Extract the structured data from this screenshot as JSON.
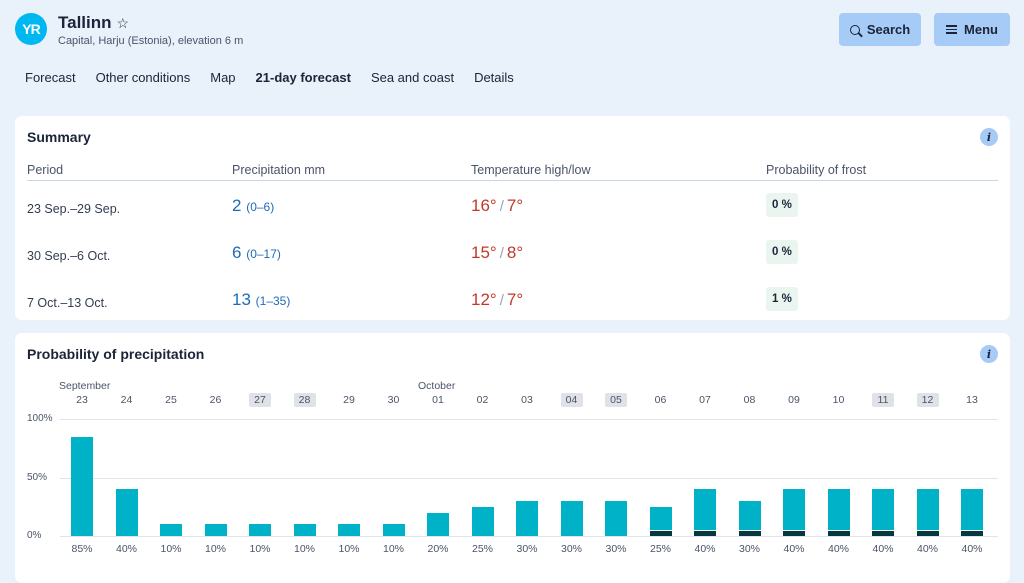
{
  "header": {
    "logo": "YR",
    "title": "Tallinn",
    "star_icon": "star-outline-icon",
    "subtitle": "Capital, Harju (Estonia), elevation 6 m",
    "search_label": "Search",
    "menu_label": "Menu"
  },
  "tabs": [
    "Forecast",
    "Other conditions",
    "Map",
    "21-day forecast",
    "Sea and coast",
    "Details"
  ],
  "active_tab": "21-day forecast",
  "summary": {
    "title": "Summary",
    "headers": {
      "period": "Period",
      "precip": "Precipitation mm",
      "temp": "Temperature high/low",
      "frost": "Probability of frost"
    },
    "rows": [
      {
        "period": "23 Sep.–29 Sep.",
        "precip": "2",
        "range": "(0–6)",
        "high": "16°",
        "low": "7°",
        "frost": "0 %"
      },
      {
        "period": "30 Sep.–6 Oct.",
        "precip": "6",
        "range": "(0–17)",
        "high": "15°",
        "low": "8°",
        "frost": "0 %"
      },
      {
        "period": "7 Oct.–13 Oct.",
        "precip": "13",
        "range": "(1–35)",
        "high": "12°",
        "low": "7°",
        "frost": "1 %"
      }
    ]
  },
  "probability": {
    "title": "Probability of precipitation",
    "months": [
      "September",
      "October"
    ]
  },
  "chart_data": {
    "type": "bar",
    "title": "Probability of precipitation",
    "categories": [
      "23",
      "24",
      "25",
      "26",
      "27",
      "28",
      "29",
      "30",
      "01",
      "02",
      "03",
      "04",
      "05",
      "06",
      "07",
      "08",
      "09",
      "10",
      "11",
      "12",
      "13"
    ],
    "weekend": [
      false,
      false,
      false,
      false,
      true,
      true,
      false,
      false,
      false,
      false,
      false,
      true,
      true,
      false,
      false,
      false,
      false,
      false,
      true,
      true,
      false
    ],
    "values": [
      85,
      40,
      10,
      10,
      10,
      10,
      10,
      10,
      20,
      25,
      30,
      30,
      30,
      25,
      40,
      30,
      40,
      40,
      40,
      40,
      40
    ],
    "value_labels": [
      "85%",
      "40%",
      "10%",
      "10%",
      "10%",
      "10%",
      "10%",
      "10%",
      "20%",
      "25%",
      "30%",
      "30%",
      "30%",
      "25%",
      "40%",
      "30%",
      "40%",
      "40%",
      "40%",
      "40%",
      "40%"
    ],
    "dark_base": [
      false,
      false,
      false,
      false,
      false,
      false,
      false,
      false,
      false,
      false,
      false,
      false,
      false,
      true,
      true,
      true,
      true,
      true,
      true,
      true,
      true
    ],
    "y_ticks": [
      "100%",
      "50%",
      "0%"
    ],
    "ylim": [
      0,
      100
    ],
    "colors": {
      "bar": "#00b2c8",
      "base": "#06393f"
    }
  }
}
